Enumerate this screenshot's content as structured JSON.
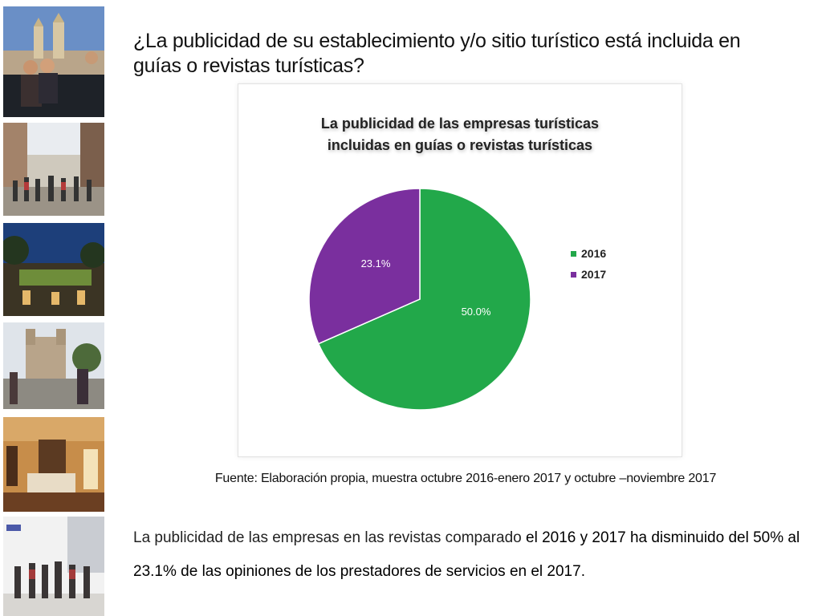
{
  "page": {
    "question": "¿La publicidad de su establecimiento y/o sitio turístico está incluida en guías o revistas turísticas?",
    "source": "Fuente: Elaboración propia, muestra octubre 2016-enero 2017 y octubre –noviembre 2017",
    "conclusion_part1": "La publicidad de las empresas en las revistas comparado ",
    "conclusion_part2": "el 2016 y 2017 ha disminuido del 50% al 23.1% de las opiniones de los prestadores de servicios en el 2017."
  },
  "photos": [
    {
      "name": "oaxaca-church-photo"
    },
    {
      "name": "street-crowd-photo"
    },
    {
      "name": "evening-terrace-photo"
    },
    {
      "name": "santo-domingo-photo"
    },
    {
      "name": "hotel-room-photo"
    },
    {
      "name": "shopping-crowd-photo"
    }
  ],
  "chart_data": {
    "type": "pie",
    "title_line1": "La publicidad de las empresas turísticas",
    "title_line2": "incluidas en guías o revistas turísticas",
    "labels": [
      "2016",
      "2017"
    ],
    "values": [
      50.0,
      23.1
    ],
    "data_labels": [
      "50.0%",
      "23.1%"
    ],
    "colors": [
      "#22a84a",
      "#7a2f9e"
    ],
    "legend_position": "right"
  }
}
